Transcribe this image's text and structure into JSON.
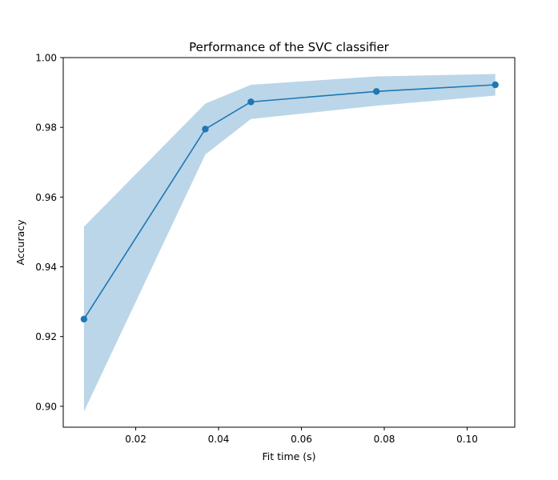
{
  "chart_data": {
    "type": "line",
    "title": "Performance of the SVC classifier",
    "xlabel": "Fit time (s)",
    "ylabel": "Accuracy",
    "xlim": [
      0.0025,
      0.1115
    ],
    "ylim": [
      0.894,
      1.0
    ],
    "x_ticks": [
      0.02,
      0.04,
      0.06,
      0.08,
      0.1
    ],
    "x_tick_labels": [
      "0.02",
      "0.04",
      "0.06",
      "0.08",
      "0.10"
    ],
    "y_ticks": [
      0.9,
      0.92,
      0.94,
      0.96,
      0.98,
      1.0
    ],
    "y_tick_labels": [
      "0.90",
      "0.92",
      "0.94",
      "0.96",
      "0.98",
      "1.00"
    ],
    "grid": false,
    "colors": {
      "line": "#1f77b4",
      "band": "#1f77b4"
    },
    "series": [
      {
        "x": [
          0.0075,
          0.0368,
          0.0478,
          0.0781,
          0.1068
        ],
        "y": [
          0.925,
          0.9795,
          0.9873,
          0.9903,
          0.9922
        ],
        "y_lower": [
          0.8985,
          0.9722,
          0.9824,
          0.9862,
          0.9891
        ],
        "y_upper": [
          0.9515,
          0.9868,
          0.9922,
          0.9946,
          0.9953
        ]
      }
    ]
  }
}
